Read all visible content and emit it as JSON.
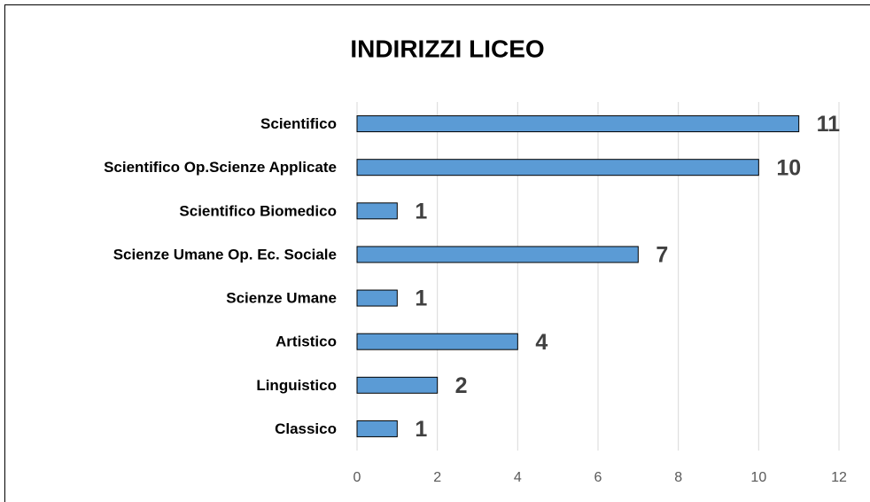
{
  "chart_data": {
    "type": "bar",
    "orientation": "horizontal",
    "title": "INDIRIZZI LICEO",
    "categories": [
      "Scientifico",
      "Scientifico Op.Scienze Applicate",
      "Scientifico Biomedico",
      "Scienze Umane Op. Ec. Sociale",
      "Scienze Umane",
      "Artistico",
      "Linguistico",
      "Classico"
    ],
    "values": [
      11,
      10,
      1,
      7,
      1,
      4,
      2,
      1
    ],
    "color": "#5b9bd5",
    "xlim": [
      0,
      12
    ],
    "xticks": [
      0,
      2,
      4,
      6,
      8,
      10,
      12
    ],
    "grid": true
  }
}
